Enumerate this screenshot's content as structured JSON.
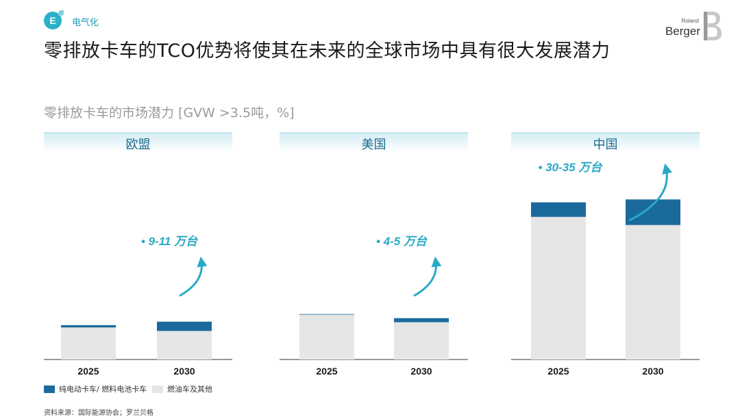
{
  "header": {
    "badge_letter": "E",
    "section": "电气化",
    "title": "零排放卡车的TCO优势将使其在未来的全球市场中具有很大发展潜力",
    "logo_line1": "Roland",
    "logo_line2": "Berger"
  },
  "subtitle": "零排放卡车的市场潜力 [GVW >3.5吨，%]",
  "colors": {
    "electric": "#1b6a9c",
    "diesel": "#e6e6e6",
    "accent": "#29a9c6",
    "header_band": "#d6eef4"
  },
  "chart_data": [
    {
      "type": "bar",
      "title": "欧盟",
      "categories": [
        "2025",
        "2030"
      ],
      "stacked": true,
      "series": [
        {
          "name": "燃油车及其他",
          "values": [
            5.5,
            4.9
          ]
        },
        {
          "name": "纯电动卡车/ 燃料电池卡车",
          "values": [
            0.4,
            1.6
          ]
        }
      ],
      "annotation": "• 9-11 万台"
    },
    {
      "type": "bar",
      "title": "美国",
      "categories": [
        "2025",
        "2030"
      ],
      "stacked": true,
      "series": [
        {
          "name": "燃油车及其他",
          "values": [
            7.7,
            6.4
          ]
        },
        {
          "name": "纯电动卡车/ 燃料电池卡车",
          "values": [
            0.1,
            0.7
          ]
        }
      ],
      "annotation": "• 4-5 万台"
    },
    {
      "type": "bar",
      "title": "中国",
      "categories": [
        "2025",
        "2030"
      ],
      "stacked": true,
      "series": [
        {
          "name": "燃油车及其他",
          "values": [
            24.5,
            23.1
          ]
        },
        {
          "name": "纯电动卡车/ 燃料电池卡车",
          "values": [
            2.5,
            4.4
          ]
        }
      ],
      "annotation": "• 30-35 万台"
    }
  ],
  "legend": [
    {
      "label": "纯电动卡车/ 燃料电池卡车",
      "color": "#1b6a9c"
    },
    {
      "label": "燃油车及其他",
      "color": "#e6e6e6"
    }
  ],
  "footnote": "资料来源：国际能源协会；罗兰贝格"
}
